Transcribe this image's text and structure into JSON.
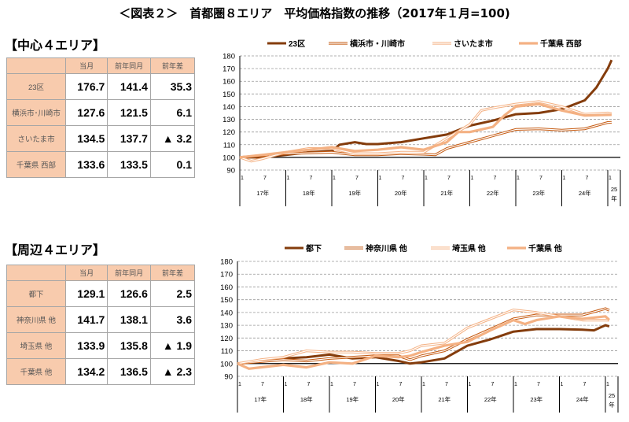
{
  "title": "＜図表２＞　首都圏８エリア　平均価格指数の推移（2017年１月=100)",
  "table_headers": [
    "",
    "当月",
    "前年同月",
    "前年差"
  ],
  "colors": {
    "dark": "#843C0C",
    "mid": "#C55A11",
    "light": "#F4B183",
    "header_bg": "#F8CBAD"
  },
  "sections": [
    {
      "label": "【中心４エリア】",
      "rows": [
        {
          "name": "23区",
          "cur": "176.7",
          "prev": "141.4",
          "diff": "35.3"
        },
        {
          "name": "横浜市･川崎市",
          "cur": "127.6",
          "prev": "121.5",
          "diff": "6.1"
        },
        {
          "name": "さいたま市",
          "cur": "134.5",
          "prev": "137.7",
          "diff": "▲ 3.2"
        },
        {
          "name": "千葉県 西部",
          "cur": "133.6",
          "prev": "133.5",
          "diff": "0.1"
        }
      ]
    },
    {
      "label": "【周辺４エリア】",
      "rows": [
        {
          "name": "都下",
          "cur": "129.1",
          "prev": "126.6",
          "diff": "2.5"
        },
        {
          "name": "神奈川県 他",
          "cur": "141.7",
          "prev": "138.1",
          "diff": "3.6"
        },
        {
          "name": "埼玉県 他",
          "cur": "133.9",
          "prev": "135.8",
          "diff": "▲ 1.9"
        },
        {
          "name": "千葉県 他",
          "cur": "134.2",
          "prev": "136.5",
          "diff": "▲ 2.3"
        }
      ]
    }
  ],
  "chart_data": [
    {
      "type": "line",
      "ylim": [
        90,
        180
      ],
      "yticks": [
        90,
        100,
        110,
        120,
        130,
        140,
        150,
        160,
        170,
        180
      ],
      "grid": true,
      "legend": "top",
      "baseline": 100,
      "x_month_ticks": [
        "1",
        "7"
      ],
      "x_years": [
        "17年",
        "18年",
        "19年",
        "20年",
        "21年",
        "22年",
        "23年",
        "24年",
        "25年"
      ],
      "series": [
        {
          "name": "23区",
          "style": "solid-dark",
          "points": [
            [
              "2017-01",
              100
            ],
            [
              "2017-07",
              100
            ],
            [
              "2018-01",
              102
            ],
            [
              "2018-07",
              104
            ],
            [
              "2019-01",
              105
            ],
            [
              "2019-03",
              110
            ],
            [
              "2019-07",
              112
            ],
            [
              "2019-10",
              110.5
            ],
            [
              "2020-01",
              110.5
            ],
            [
              "2020-07",
              112
            ],
            [
              "2021-01",
              115
            ],
            [
              "2021-07",
              118
            ],
            [
              "2022-01",
              125
            ],
            [
              "2022-07",
              129
            ],
            [
              "2023-01",
              134
            ],
            [
              "2023-07",
              135
            ],
            [
              "2024-01",
              138
            ],
            [
              "2024-07",
              145
            ],
            [
              "2024-10",
              155
            ],
            [
              "2025-01",
              170
            ],
            [
              "2025-02",
              176.7
            ]
          ]
        },
        {
          "name": "横浜市・川崎市",
          "style": "double-mid",
          "points": [
            [
              "2017-01",
              100
            ],
            [
              "2018-01",
              103
            ],
            [
              "2019-01",
              104
            ],
            [
              "2019-07",
              102
            ],
            [
              "2020-01",
              102
            ],
            [
              "2020-07",
              103
            ],
            [
              "2021-01",
              102.5
            ],
            [
              "2021-04",
              102
            ],
            [
              "2021-07",
              107
            ],
            [
              "2022-01",
              112
            ],
            [
              "2022-07",
              117
            ],
            [
              "2023-01",
              122
            ],
            [
              "2023-07",
              122.5
            ],
            [
              "2024-01",
              121.5
            ],
            [
              "2024-07",
              122.5
            ],
            [
              "2024-10",
              125
            ],
            [
              "2025-01",
              127.5
            ],
            [
              "2025-02",
              127.6
            ]
          ]
        },
        {
          "name": "さいたま市",
          "style": "double-light",
          "points": [
            [
              "2017-01",
              100
            ],
            [
              "2017-04",
              97
            ],
            [
              "2017-07",
              99
            ],
            [
              "2018-01",
              104
            ],
            [
              "2018-07",
              107
            ],
            [
              "2019-01",
              107
            ],
            [
              "2019-07",
              103
            ],
            [
              "2020-01",
              103
            ],
            [
              "2020-07",
              104
            ],
            [
              "2021-01",
              104
            ],
            [
              "2021-07",
              115
            ],
            [
              "2022-01",
              126
            ],
            [
              "2022-04",
              137
            ],
            [
              "2022-07",
              139
            ],
            [
              "2023-01",
              142
            ],
            [
              "2023-07",
              144
            ],
            [
              "2024-01",
              140
            ],
            [
              "2024-07",
              134
            ],
            [
              "2025-01",
              135
            ],
            [
              "2025-02",
              134.5
            ]
          ]
        },
        {
          "name": "千葉県 西部",
          "style": "solid-light",
          "points": [
            [
              "2017-01",
              100
            ],
            [
              "2017-07",
              102
            ],
            [
              "2018-01",
              104
            ],
            [
              "2018-07",
              106
            ],
            [
              "2019-01",
              108
            ],
            [
              "2019-07",
              105
            ],
            [
              "2020-01",
              106
            ],
            [
              "2020-07",
              108
            ],
            [
              "2021-01",
              106
            ],
            [
              "2021-07",
              112
            ],
            [
              "2021-10",
              120
            ],
            [
              "2022-01",
              120
            ],
            [
              "2022-07",
              124
            ],
            [
              "2022-10",
              133
            ],
            [
              "2023-01",
              140
            ],
            [
              "2023-07",
              142
            ],
            [
              "2024-01",
              137
            ],
            [
              "2024-07",
              133
            ],
            [
              "2025-01",
              133.5
            ],
            [
              "2025-02",
              133.6
            ]
          ]
        }
      ]
    },
    {
      "type": "line",
      "ylim": [
        90,
        180
      ],
      "yticks": [
        90,
        100,
        110,
        120,
        130,
        140,
        150,
        160,
        170,
        180
      ],
      "grid": true,
      "legend": "top",
      "baseline": 100,
      "x_month_ticks": [
        "1",
        "7"
      ],
      "x_years": [
        "17年",
        "18年",
        "19年",
        "20年",
        "21年",
        "22年",
        "23年",
        "24年",
        "25年"
      ],
      "series": [
        {
          "name": "都下",
          "style": "solid-dark",
          "points": [
            [
              "2017-01",
              100
            ],
            [
              "2018-01",
              104
            ],
            [
              "2018-07",
              105
            ],
            [
              "2019-01",
              107
            ],
            [
              "2019-07",
              104
            ],
            [
              "2020-01",
              105
            ],
            [
              "2020-07",
              102
            ],
            [
              "2020-10",
              100
            ],
            [
              "2021-01",
              101
            ],
            [
              "2021-07",
              104
            ],
            [
              "2022-01",
              114
            ],
            [
              "2022-07",
              119
            ],
            [
              "2023-01",
              125
            ],
            [
              "2023-07",
              127
            ],
            [
              "2024-01",
              127
            ],
            [
              "2024-07",
              126.5
            ],
            [
              "2024-10",
              126
            ],
            [
              "2025-01",
              130
            ],
            [
              "2025-02",
              129.1
            ]
          ]
        },
        {
          "name": "神奈川県 他",
          "style": "double-mid",
          "points": [
            [
              "2017-01",
              100
            ],
            [
              "2018-01",
              103
            ],
            [
              "2018-07",
              102
            ],
            [
              "2019-01",
              104
            ],
            [
              "2019-07",
              105
            ],
            [
              "2020-01",
              106
            ],
            [
              "2020-07",
              106
            ],
            [
              "2020-10",
              103
            ],
            [
              "2021-01",
              106
            ],
            [
              "2021-07",
              110
            ],
            [
              "2022-01",
              119
            ],
            [
              "2022-07",
              127
            ],
            [
              "2023-01",
              135
            ],
            [
              "2023-07",
              138
            ],
            [
              "2024-01",
              138
            ],
            [
              "2024-07",
              138
            ],
            [
              "2025-01",
              143
            ],
            [
              "2025-02",
              141.7
            ]
          ]
        },
        {
          "name": "埼玉県 他",
          "style": "double-light",
          "points": [
            [
              "2017-01",
              100
            ],
            [
              "2017-07",
              103
            ],
            [
              "2018-01",
              105
            ],
            [
              "2018-07",
              110
            ],
            [
              "2019-01",
              109
            ],
            [
              "2019-07",
              109
            ],
            [
              "2020-01",
              108
            ],
            [
              "2020-07",
              108
            ],
            [
              "2020-10",
              110
            ],
            [
              "2021-01",
              114
            ],
            [
              "2021-07",
              116
            ],
            [
              "2022-01",
              128
            ],
            [
              "2022-07",
              135
            ],
            [
              "2023-01",
              142
            ],
            [
              "2023-07",
              140
            ],
            [
              "2024-01",
              137
            ],
            [
              "2024-07",
              134
            ],
            [
              "2025-01",
              134
            ],
            [
              "2025-02",
              133.9
            ]
          ]
        },
        {
          "name": "千葉県 他",
          "style": "solid-light",
          "points": [
            [
              "2017-01",
              100
            ],
            [
              "2017-04",
              96
            ],
            [
              "2017-07",
              97
            ],
            [
              "2018-01",
              99
            ],
            [
              "2018-07",
              97
            ],
            [
              "2019-01",
              101
            ],
            [
              "2019-07",
              100
            ],
            [
              "2020-01",
              106
            ],
            [
              "2020-07",
              105
            ],
            [
              "2020-10",
              106
            ],
            [
              "2021-01",
              109
            ],
            [
              "2021-07",
              114
            ],
            [
              "2022-01",
              117
            ],
            [
              "2022-07",
              126
            ],
            [
              "2023-01",
              134
            ],
            [
              "2023-04",
              131
            ],
            [
              "2023-07",
              134
            ],
            [
              "2024-01",
              137
            ],
            [
              "2024-07",
              135
            ],
            [
              "2025-01",
              137
            ],
            [
              "2025-02",
              134.2
            ]
          ]
        }
      ]
    }
  ]
}
